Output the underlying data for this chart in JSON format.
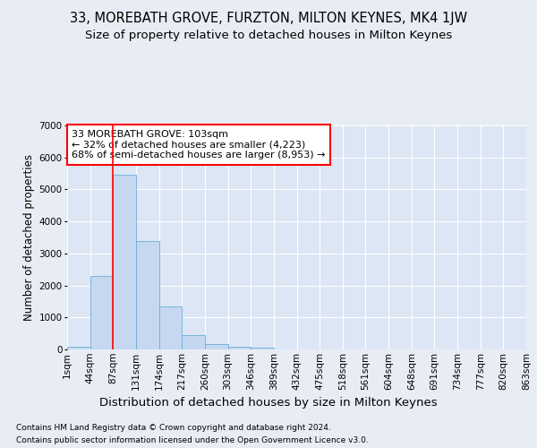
{
  "title1": "33, MOREBATH GROVE, FURZTON, MILTON KEYNES, MK4 1JW",
  "title2": "Size of property relative to detached houses in Milton Keynes",
  "xlabel": "Distribution of detached houses by size in Milton Keynes",
  "ylabel": "Number of detached properties",
  "footnote1": "Contains HM Land Registry data © Crown copyright and database right 2024.",
  "footnote2": "Contains public sector information licensed under the Open Government Licence v3.0.",
  "bin_labels": [
    "1sqm",
    "44sqm",
    "87sqm",
    "131sqm",
    "174sqm",
    "217sqm",
    "260sqm",
    "303sqm",
    "346sqm",
    "389sqm",
    "432sqm",
    "475sqm",
    "518sqm",
    "561sqm",
    "604sqm",
    "648sqm",
    "691sqm",
    "734sqm",
    "777sqm",
    "820sqm",
    "863sqm"
  ],
  "bar_values": [
    80,
    2300,
    5450,
    3400,
    1350,
    450,
    175,
    80,
    50,
    0,
    0,
    0,
    0,
    0,
    0,
    0,
    0,
    0,
    0,
    0
  ],
  "bar_color": "#c5d8f0",
  "bar_edge_color": "#6baed6",
  "vline_x_bar": 2,
  "vline_color": "red",
  "annotation_text": "33 MOREBATH GROVE: 103sqm\n← 32% of detached houses are smaller (4,223)\n68% of semi-detached houses are larger (8,953) →",
  "annotation_box_color": "white",
  "annotation_box_edgecolor": "red",
  "ylim": [
    0,
    7000
  ],
  "yticks": [
    0,
    1000,
    2000,
    3000,
    4000,
    5000,
    6000,
    7000
  ],
  "background_color": "#e8edf5",
  "plot_background": "#dce6f5",
  "grid_color": "white",
  "title1_fontsize": 10.5,
  "title2_fontsize": 9.5,
  "xlabel_fontsize": 9.5,
  "ylabel_fontsize": 8.5,
  "tick_fontsize": 7.5,
  "footnote_fontsize": 6.5
}
